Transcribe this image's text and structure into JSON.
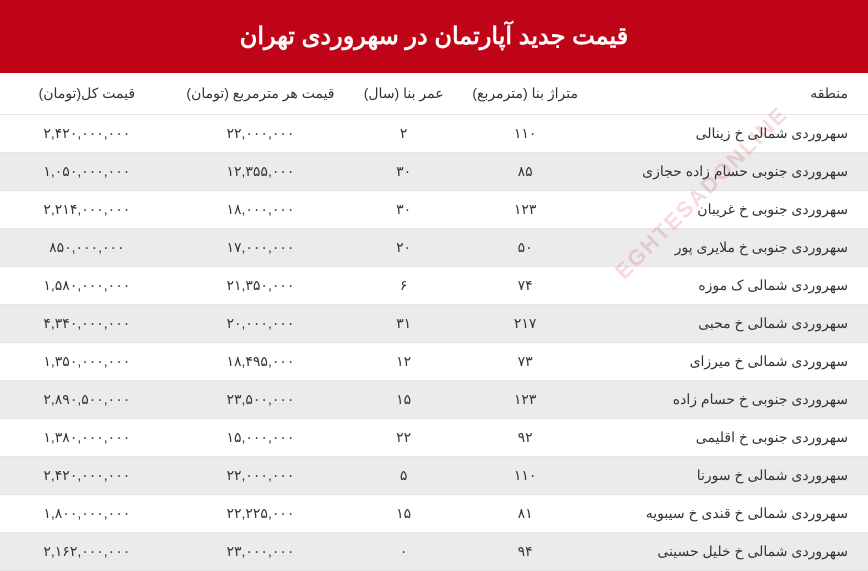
{
  "header": {
    "title": "قیمت جدید آپارتمان در سهروردی تهران",
    "bg_color": "#c00418",
    "fg_color": "#ffffff",
    "fontsize": 24
  },
  "table": {
    "columns": [
      {
        "key": "region",
        "label": "منطقه",
        "align": "right"
      },
      {
        "key": "area",
        "label": "متراژ بنا (مترمربع)",
        "align": "center"
      },
      {
        "key": "age",
        "label": "عمر بنا (سال)",
        "align": "center"
      },
      {
        "key": "price_per_m",
        "label": "قیمت هر مترمربع (تومان)",
        "align": "center"
      },
      {
        "key": "total_price",
        "label": "قیمت کل(تومان)",
        "align": "center"
      }
    ],
    "rows": [
      {
        "region": "سهروردی شمالی خ زینالی",
        "area": "۱۱۰",
        "age": "۲",
        "price_per_m": "۲۲,۰۰۰,۰۰۰",
        "total_price": "۲,۴۲۰,۰۰۰,۰۰۰"
      },
      {
        "region": "سهروردی جنوبی حسام زاده حجازی",
        "area": "۸۵",
        "age": "۳۰",
        "price_per_m": "۱۲,۳۵۵,۰۰۰",
        "total_price": "۱,۰۵۰,۰۰۰,۰۰۰"
      },
      {
        "region": "سهروردی جنوبی خ غریبان",
        "area": "۱۲۳",
        "age": "۳۰",
        "price_per_m": "۱۸,۰۰۰,۰۰۰",
        "total_price": "۲,۲۱۴,۰۰۰,۰۰۰"
      },
      {
        "region": "سهروردی جنوبی خ ملایری پور",
        "area": "۵۰",
        "age": "۲۰",
        "price_per_m": "۱۷,۰۰۰,۰۰۰",
        "total_price": "۸۵۰,۰۰۰,۰۰۰"
      },
      {
        "region": "سهروردی شمالی ک موزه",
        "area": "۷۴",
        "age": "۶",
        "price_per_m": "۲۱,۳۵۰,۰۰۰",
        "total_price": "۱,۵۸۰,۰۰۰,۰۰۰"
      },
      {
        "region": "سهروردی شمالی خ محبی",
        "area": "۲۱۷",
        "age": "۳۱",
        "price_per_m": "۲۰,۰۰۰,۰۰۰",
        "total_price": "۴,۳۴۰,۰۰۰,۰۰۰"
      },
      {
        "region": "سهروردی شمالی خ میرزای",
        "area": "۷۳",
        "age": "۱۲",
        "price_per_m": "۱۸,۴۹۵,۰۰۰",
        "total_price": "۱,۳۵۰,۰۰۰,۰۰۰"
      },
      {
        "region": "سهروردی جنوبی خ حسام زاده",
        "area": "۱۲۳",
        "age": "۱۵",
        "price_per_m": "۲۳,۵۰۰,۰۰۰",
        "total_price": "۲,۸۹۰,۵۰۰,۰۰۰"
      },
      {
        "region": "سهروردی جنوبی خ اقلیمی",
        "area": "۹۲",
        "age": "۲۲",
        "price_per_m": "۱۵,۰۰۰,۰۰۰",
        "total_price": "۱,۳۸۰,۰۰۰,۰۰۰"
      },
      {
        "region": "سهروردی شمالی خ سورنا",
        "area": "۱۱۰",
        "age": "۵",
        "price_per_m": "۲۲,۰۰۰,۰۰۰",
        "total_price": "۲,۴۲۰,۰۰۰,۰۰۰"
      },
      {
        "region": "سهروردی شمالی خ قندی خ سیبویه",
        "area": "۸۱",
        "age": "۱۵",
        "price_per_m": "۲۲,۲۲۵,۰۰۰",
        "total_price": "۱,۸۰۰,۰۰۰,۰۰۰"
      },
      {
        "region": "سهروردی شمالی خ خلیل حسینی",
        "area": "۹۴",
        "age": "۰",
        "price_per_m": "۲۳,۰۰۰,۰۰۰",
        "total_price": "۲,۱۶۲,۰۰۰,۰۰۰"
      }
    ],
    "row_even_bg": "#ebebeb",
    "row_odd_bg": "#ffffff",
    "border_color": "#e5e5e5",
    "text_color": "#333333",
    "fontsize": 14
  },
  "watermark": {
    "text": "EGHTESADONLINE",
    "color": "rgba(192,4,24,0.15)"
  }
}
